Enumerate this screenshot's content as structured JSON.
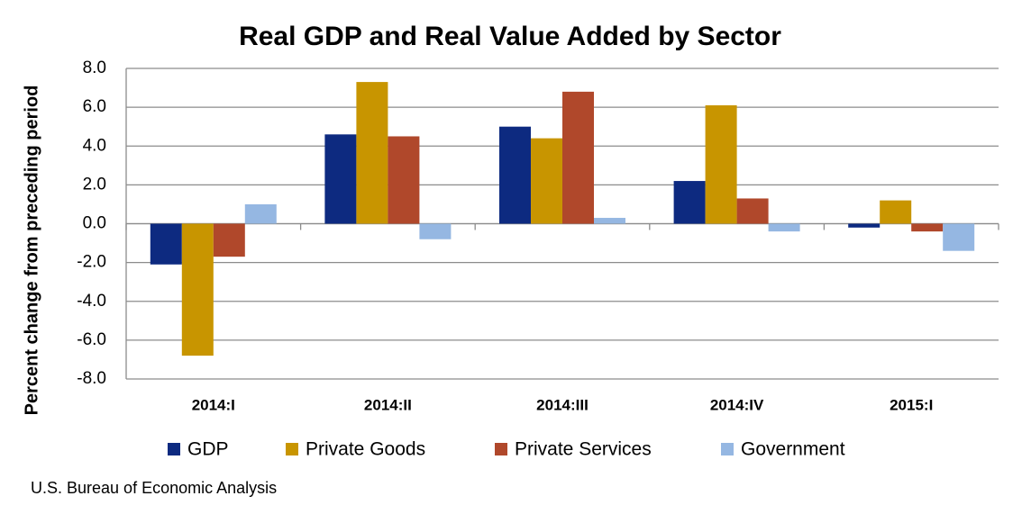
{
  "chart_data": {
    "type": "bar",
    "title": "Real GDP and Real Value Added by Sector",
    "y_label": "Percent change from preceding period",
    "source": "U.S. Bureau of Economic Analysis",
    "categories": [
      "2014:I",
      "2014:II",
      "2014:III",
      "2014:IV",
      "2015:I"
    ],
    "series": [
      {
        "name": "GDP",
        "color": "#0d2a80",
        "values": [
          -2.1,
          4.6,
          5.0,
          2.2,
          -0.2
        ]
      },
      {
        "name": "Private Goods",
        "color": "#c89500",
        "values": [
          -6.8,
          7.3,
          4.4,
          6.1,
          1.2
        ]
      },
      {
        "name": "Private Services",
        "color": "#b0482b",
        "values": [
          -1.7,
          4.5,
          6.8,
          1.3,
          -0.4
        ]
      },
      {
        "name": "Government",
        "color": "#95b7e2",
        "values": [
          1.0,
          -0.8,
          0.3,
          -0.4,
          -1.4
        ]
      }
    ],
    "ylim": [
      -8,
      8
    ],
    "yticks": [
      {
        "value": -8,
        "label": "-8.0"
      },
      {
        "value": -6,
        "label": "-6.0"
      },
      {
        "value": -4,
        "label": "-4.0"
      },
      {
        "value": -2,
        "label": "-2.0"
      },
      {
        "value": 0,
        "label": "0.0"
      },
      {
        "value": 2,
        "label": "2.0"
      },
      {
        "value": 4,
        "label": "4.0"
      },
      {
        "value": 6,
        "label": "6.0"
      },
      {
        "value": 8,
        "label": "8.0"
      }
    ],
    "grid": true
  }
}
